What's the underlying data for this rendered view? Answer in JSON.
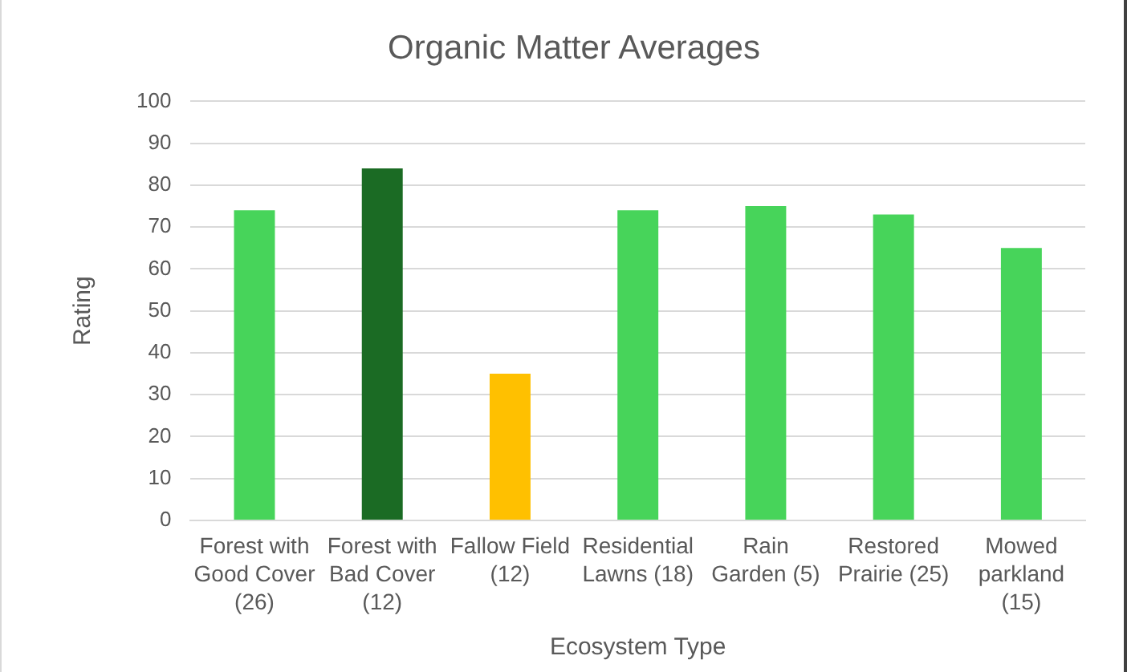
{
  "chart_data": {
    "type": "bar",
    "title": "Organic Matter Averages",
    "xlabel": "Ecosystem Type",
    "ylabel": "Rating",
    "categories": [
      "Forest with Good Cover (26)",
      "Forest with Bad Cover (12)",
      "Fallow Field (12)",
      "Residential Lawns (18)",
      "Rain Garden (5)",
      "Restored Prairie (25)",
      "Mowed parkland (15)"
    ],
    "values": [
      74,
      84,
      35,
      74,
      75,
      73,
      65
    ],
    "colors": [
      "#47d45a",
      "#1b6b24",
      "#ffc000",
      "#47d45a",
      "#47d45a",
      "#47d45a",
      "#47d45a"
    ],
    "ylim": [
      0,
      100
    ],
    "yticks": [
      0,
      10,
      20,
      30,
      40,
      50,
      60,
      70,
      80,
      90,
      100
    ],
    "grid": "y",
    "legend": false
  }
}
